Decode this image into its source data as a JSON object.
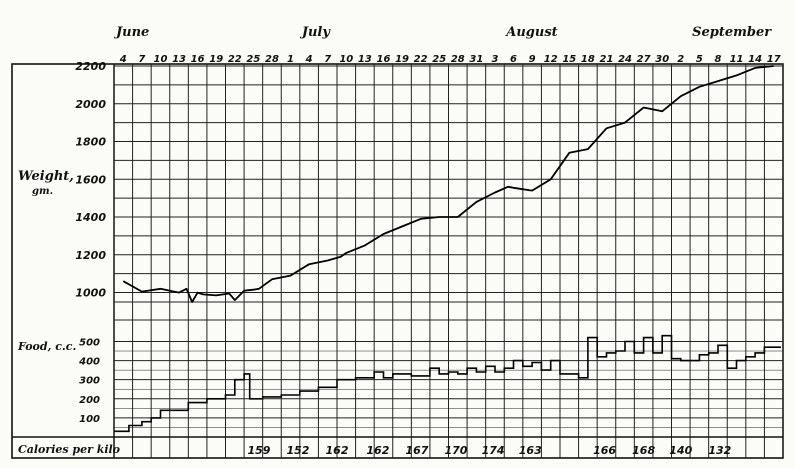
{
  "chart_data": {
    "type": "line",
    "months": [
      {
        "label": "June",
        "date_index": 0
      },
      {
        "label": "July",
        "date_index": 10
      },
      {
        "label": "August",
        "date_index": 21
      },
      {
        "label": "September",
        "date_index": 31
      }
    ],
    "dates": [
      "4",
      "7",
      "10",
      "13",
      "16",
      "19",
      "22",
      "25",
      "28",
      "1",
      "4",
      "7",
      "10",
      "13",
      "16",
      "19",
      "22",
      "25",
      "28",
      "31",
      "3",
      "6",
      "9",
      "12",
      "15",
      "18",
      "21",
      "24",
      "27",
      "30",
      "2",
      "5",
      "8",
      "11",
      "14",
      "17"
    ],
    "weight": {
      "ylabel": "Weight,",
      "yunit": "gm.",
      "ylim": [
        950,
        2200
      ],
      "ticks": [
        1000,
        1200,
        1400,
        1600,
        1800,
        2000,
        2200
      ],
      "x": [
        0,
        1,
        2,
        3,
        3.4,
        3.7,
        4.0,
        4.3,
        5,
        5.7,
        6,
        6.5,
        7,
        7.3,
        8,
        9,
        10,
        11,
        11.7,
        12,
        13,
        14,
        15,
        16,
        17,
        18,
        19,
        20,
        20.7,
        21,
        22,
        23,
        24,
        25,
        26,
        27,
        28,
        29,
        30,
        31,
        32,
        33,
        34,
        35
      ],
      "y": [
        1060,
        1005,
        1020,
        1000,
        1020,
        950,
        1000,
        990,
        985,
        995,
        960,
        1010,
        1015,
        1020,
        1070,
        1090,
        1150,
        1170,
        1190,
        1210,
        1250,
        1310,
        1350,
        1390,
        1400,
        1400,
        1480,
        1530,
        1560,
        1555,
        1540,
        1600,
        1740,
        1760,
        1870,
        1900,
        1980,
        1960,
        2040,
        2090,
        2120,
        2150,
        2190,
        2200
      ]
    },
    "food": {
      "ylabel": "Food, c.c.",
      "ylim": [
        0,
        560
      ],
      "ticks": [
        100,
        200,
        300,
        400,
        500
      ],
      "x": [
        0,
        0.8,
        1.5,
        2,
        2.5,
        3,
        4,
        5,
        6,
        6.5,
        7,
        7.3,
        8,
        9,
        10,
        11,
        12,
        13,
        14,
        14.5,
        15,
        16,
        17,
        17.5,
        18,
        18.5,
        19,
        19.5,
        20,
        20.5,
        21,
        21.5,
        22,
        22.5,
        23,
        23.5,
        24,
        25,
        25.5,
        26,
        26.5,
        27,
        27.5,
        28,
        28.5,
        29,
        29.5,
        30,
        30.5,
        31,
        31.5,
        32,
        32.5,
        33,
        33.5,
        34,
        34.5,
        35,
        35.5
      ],
      "y": [
        30,
        60,
        80,
        100,
        140,
        140,
        180,
        200,
        220,
        300,
        330,
        200,
        210,
        220,
        240,
        260,
        300,
        310,
        340,
        310,
        330,
        320,
        360,
        330,
        340,
        330,
        360,
        340,
        370,
        340,
        360,
        400,
        370,
        390,
        350,
        400,
        330,
        310,
        520,
        420,
        440,
        450,
        500,
        440,
        520,
        440,
        530,
        410,
        400,
        400,
        430,
        440,
        480,
        360,
        400,
        420,
        440,
        470,
        470
      ]
    },
    "calories": {
      "label": "Calories per kilo",
      "entries": [
        {
          "date_index": 7.8,
          "value": "159"
        },
        {
          "date_index": 9.9,
          "value": "152"
        },
        {
          "date_index": 12.0,
          "value": "162"
        },
        {
          "date_index": 14.2,
          "value": "162"
        },
        {
          "date_index": 16.3,
          "value": "167"
        },
        {
          "date_index": 18.4,
          "value": "170"
        },
        {
          "date_index": 20.4,
          "value": "174"
        },
        {
          "date_index": 22.4,
          "value": "163"
        },
        {
          "date_index": 26.4,
          "value": "166"
        },
        {
          "date_index": 28.5,
          "value": "168"
        },
        {
          "date_index": 30.5,
          "value": "140"
        },
        {
          "date_index": 32.6,
          "value": "132"
        }
      ]
    },
    "grid": true,
    "legend": "none"
  }
}
